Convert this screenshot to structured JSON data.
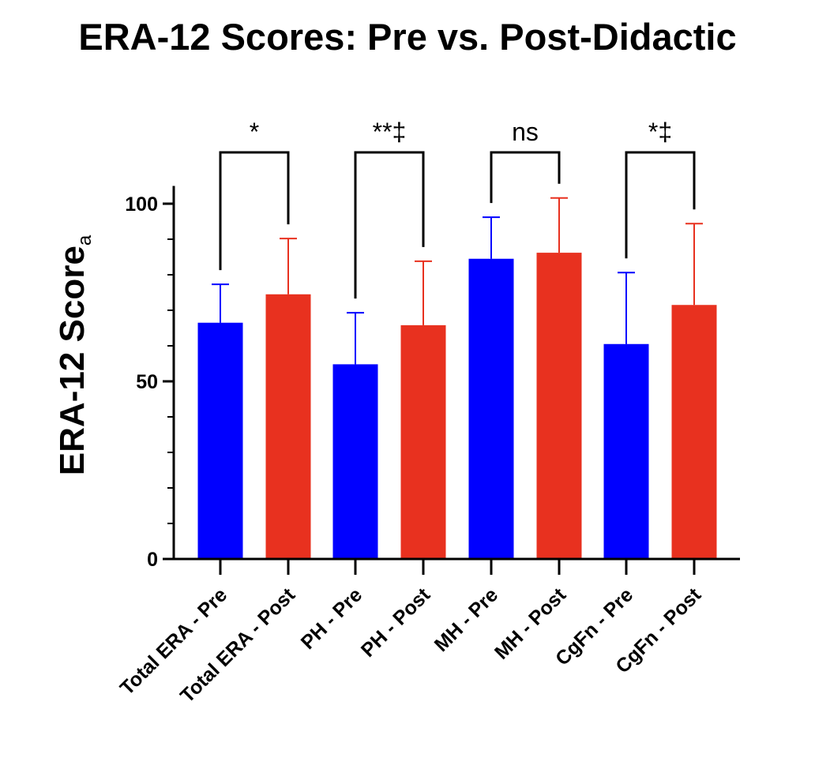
{
  "chart_data": {
    "type": "bar",
    "title": "ERA-12 Scores: Pre vs. Post-Didactic",
    "ylabel": "ERA-12  Score",
    "ylabel_subscript": "a",
    "xlabel": "",
    "ylim": [
      0,
      105
    ],
    "yticks": [
      0,
      50,
      100
    ],
    "ytick_labels": [
      "0",
      "50",
      "100"
    ],
    "grid": false,
    "colors": {
      "pre": "#0000ff",
      "post": "#e8311f"
    },
    "categories": [
      "Total ERA - Pre",
      "Total ERA - Post",
      "PH - Pre",
      "PH - Post",
      "MH - Pre",
      "MH - Post",
      "CgFn - Pre",
      "CgFn - Post"
    ],
    "series_type": [
      "pre",
      "post",
      "pre",
      "post",
      "pre",
      "post",
      "pre",
      "post"
    ],
    "values": [
      66.5,
      74.5,
      54.8,
      65.8,
      84.5,
      86.2,
      60.5,
      71.5
    ],
    "error_upper": [
      77.3,
      90.2,
      69.3,
      83.8,
      96.2,
      101.6,
      80.6,
      94.4
    ],
    "significance": [
      {
        "from": 0,
        "to": 1,
        "label": "*"
      },
      {
        "from": 2,
        "to": 3,
        "label": "**‡"
      },
      {
        "from": 4,
        "to": 5,
        "label": "ns"
      },
      {
        "from": 6,
        "to": 7,
        "label": "*‡"
      }
    ]
  }
}
